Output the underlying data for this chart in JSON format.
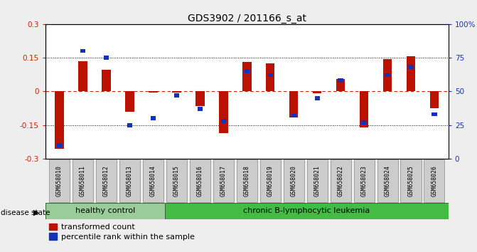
{
  "title": "GDS3902 / 201166_s_at",
  "samples": [
    "GSM658010",
    "GSM658011",
    "GSM658012",
    "GSM658013",
    "GSM658014",
    "GSM658015",
    "GSM658016",
    "GSM658017",
    "GSM658018",
    "GSM658019",
    "GSM658020",
    "GSM658021",
    "GSM658022",
    "GSM658023",
    "GSM658024",
    "GSM658025",
    "GSM658026"
  ],
  "red_values": [
    -0.255,
    0.135,
    0.095,
    -0.09,
    -0.005,
    -0.005,
    -0.065,
    -0.185,
    0.13,
    0.125,
    -0.115,
    -0.01,
    0.055,
    -0.16,
    0.145,
    0.155,
    -0.075
  ],
  "blue_percent": [
    10,
    80,
    75,
    25,
    30,
    47,
    37,
    28,
    65,
    62,
    32,
    45,
    58,
    27,
    62,
    68,
    33
  ],
  "ylim": [
    -0.3,
    0.3
  ],
  "yticks_left": [
    -0.3,
    -0.15,
    0.0,
    0.15,
    0.3
  ],
  "yticks_right": [
    0,
    25,
    50,
    75,
    100
  ],
  "bar_color_red": "#bb1100",
  "bar_color_blue": "#1133bb",
  "bg_color": "#eeeeee",
  "plot_bg": "#ffffff",
  "dotted_line_color": "#000000",
  "red_dashed_color": "#cc2200",
  "healthy_bg": "#99cc99",
  "leukemia_bg": "#44bb44",
  "label_color_red": "#cc2200",
  "label_color_blue": "#1133bb",
  "n_healthy": 5,
  "n_total": 17
}
